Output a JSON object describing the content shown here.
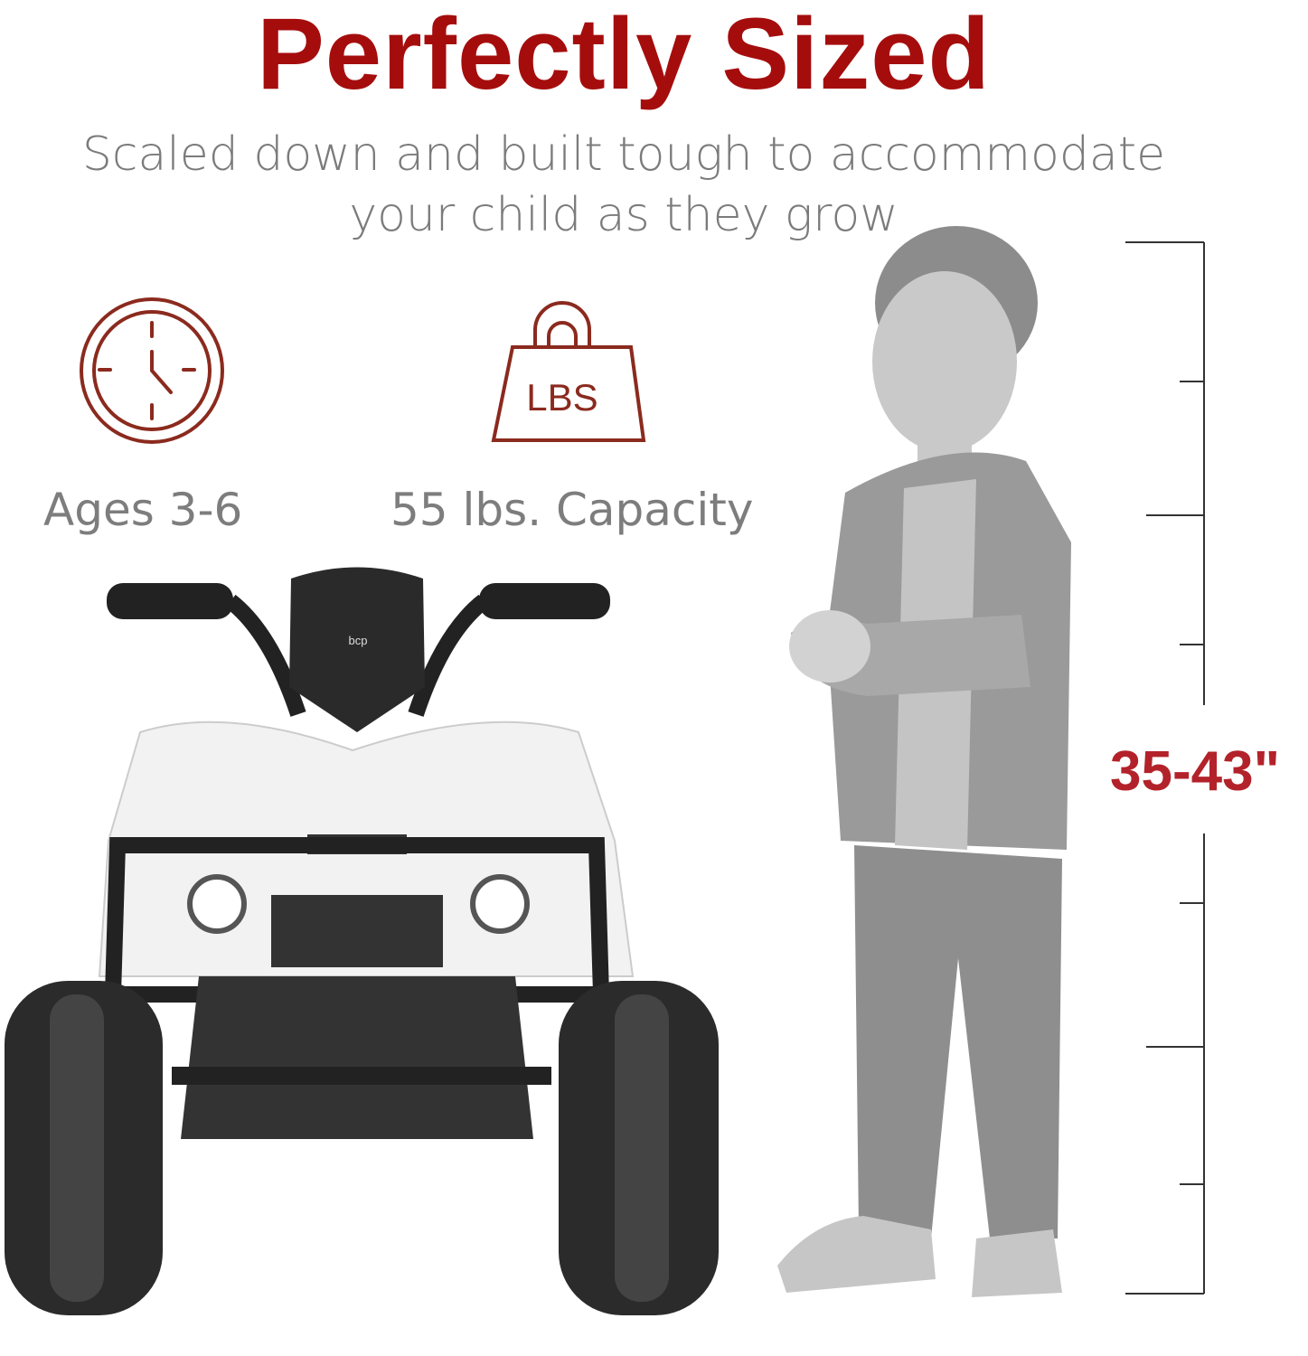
{
  "header": {
    "title": "Perfectly Sized",
    "subtitle_line1": "Scaled down and built tough to accommodate",
    "subtitle_line2": "your child as they grow"
  },
  "features": [
    {
      "icon": "clock-icon",
      "label": "Ages 3-6"
    },
    {
      "icon": "weight-icon",
      "icon_text": "LBS",
      "label": "55 lbs. Capacity"
    }
  ],
  "height_range": "35-43\"",
  "product_logo": "bcp",
  "colors": {
    "title": "#a50d0d",
    "icon": "#8b2a1e",
    "measure": "#b3222a",
    "text": "#7b7b7b"
  }
}
